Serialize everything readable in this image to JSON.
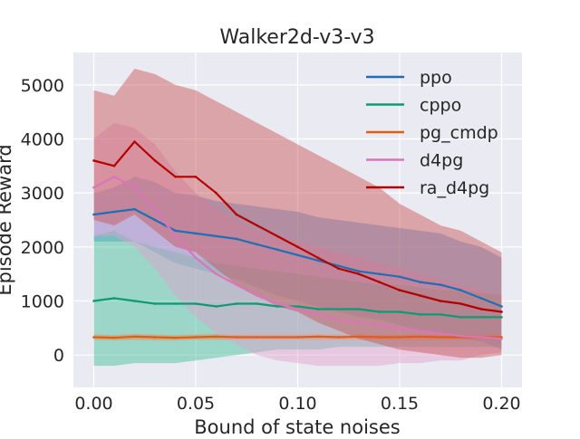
{
  "chart_data": {
    "type": "line",
    "title": "Walker2d-v3-v3",
    "xlabel": "Bound of state noises",
    "ylabel": "Episode Reward",
    "xlim": [
      -0.01,
      0.21
    ],
    "ylim": [
      -600,
      5600
    ],
    "xticks": [
      0.0,
      0.05,
      0.1,
      0.15,
      0.2
    ],
    "xtick_labels": [
      "0.00",
      "0.05",
      "0.10",
      "0.15",
      "0.20"
    ],
    "yticks": [
      0,
      1000,
      2000,
      3000,
      4000,
      5000
    ],
    "ytick_labels": [
      "0",
      "1000",
      "2000",
      "3000",
      "4000",
      "5000"
    ],
    "grid": true,
    "legend_position": "top-right",
    "style": "seaborn-darkgrid with shaded confidence bands",
    "x": [
      0.0,
      0.01,
      0.02,
      0.03,
      0.04,
      0.05,
      0.06,
      0.07,
      0.08,
      0.09,
      0.1,
      0.11,
      0.12,
      0.13,
      0.14,
      0.15,
      0.16,
      0.17,
      0.18,
      0.19,
      0.2
    ],
    "series": [
      {
        "name": "ppo",
        "color": "#1f6fb4",
        "band_color": "#4c8fd0",
        "values": [
          2600,
          2650,
          2700,
          2500,
          2300,
          2250,
          2200,
          2150,
          2050,
          1950,
          1850,
          1750,
          1650,
          1550,
          1500,
          1450,
          1350,
          1300,
          1200,
          1050,
          900
        ],
        "lower": [
          2100,
          2100,
          2100,
          1900,
          1700,
          1600,
          1500,
          1400,
          1250,
          1100,
          1000,
          900,
          800,
          700,
          650,
          550,
          450,
          400,
          300,
          250,
          100
        ],
        "upper": [
          3000,
          3100,
          3300,
          3200,
          3000,
          2950,
          2850,
          2800,
          2750,
          2700,
          2650,
          2550,
          2500,
          2450,
          2400,
          2350,
          2300,
          2250,
          2100,
          2000,
          1800
        ]
      },
      {
        "name": "cppo",
        "color": "#0e9a72",
        "band_color": "#3cbf95",
        "values": [
          1000,
          1050,
          1000,
          950,
          950,
          950,
          900,
          950,
          950,
          900,
          900,
          850,
          850,
          850,
          800,
          800,
          750,
          750,
          700,
          700,
          700
        ],
        "lower": [
          -200,
          -200,
          -150,
          -150,
          -150,
          -100,
          -50,
          0,
          50,
          100,
          100,
          100,
          150,
          150,
          150,
          150,
          150,
          150,
          150,
          150,
          150
        ],
        "upper": [
          2200,
          2300,
          2100,
          2000,
          1900,
          1800,
          1700,
          1650,
          1600,
          1550,
          1500,
          1450,
          1400,
          1350,
          1300,
          1300,
          1250,
          1200,
          1200,
          1150,
          1100
        ]
      },
      {
        "name": "pg_cmdp",
        "color": "#e25c14",
        "band_color": "#f08a4c",
        "values": [
          330,
          320,
          340,
          330,
          320,
          330,
          340,
          330,
          330,
          330,
          330,
          340,
          330,
          340,
          330,
          330,
          340,
          330,
          330,
          330,
          330
        ],
        "lower": [
          280,
          270,
          280,
          270,
          270,
          280,
          280,
          280,
          280,
          280,
          280,
          280,
          280,
          280,
          280,
          280,
          280,
          280,
          280,
          280,
          280
        ],
        "upper": [
          380,
          370,
          390,
          380,
          370,
          380,
          390,
          380,
          380,
          380,
          380,
          390,
          380,
          390,
          380,
          380,
          390,
          380,
          380,
          380,
          380
        ]
      },
      {
        "name": "d4pg",
        "color": "#d975b8",
        "band_color": "#e3a0cc",
        "values": [
          3100,
          3300,
          3100,
          2700,
          2200,
          1800,
          1500,
          1300,
          1100,
          950,
          850,
          750,
          650,
          600,
          550,
          500,
          450,
          400,
          350,
          330,
          300
        ],
        "lower": [
          2200,
          2200,
          2000,
          1600,
          1100,
          700,
          400,
          200,
          0,
          -100,
          -150,
          -200,
          -200,
          -200,
          -200,
          -150,
          -150,
          -100,
          -100,
          0,
          50
        ],
        "upper": [
          4000,
          4300,
          4200,
          3900,
          3400,
          3000,
          2700,
          2500,
          2300,
          2200,
          2100,
          2000,
          1900,
          1800,
          1700,
          1600,
          1500,
          1400,
          1300,
          1200,
          1100
        ]
      },
      {
        "name": "ra_d4pg",
        "color": "#b30000",
        "band_color": "#c85050",
        "values": [
          3600,
          3500,
          3950,
          3600,
          3300,
          3300,
          3000,
          2600,
          2400,
          2200,
          2000,
          1800,
          1600,
          1500,
          1350,
          1200,
          1100,
          1000,
          950,
          850,
          800
        ],
        "lower": [
          2500,
          2400,
          2600,
          2300,
          2000,
          1900,
          1600,
          1300,
          1100,
          900,
          800,
          600,
          450,
          300,
          200,
          100,
          50,
          0,
          -50,
          -50,
          0
        ],
        "upper": [
          4900,
          4800,
          5300,
          5200,
          5000,
          4900,
          4700,
          4500,
          4300,
          4100,
          3900,
          3700,
          3500,
          3300,
          3100,
          2800,
          2600,
          2400,
          2300,
          2100,
          1900
        ]
      }
    ]
  }
}
